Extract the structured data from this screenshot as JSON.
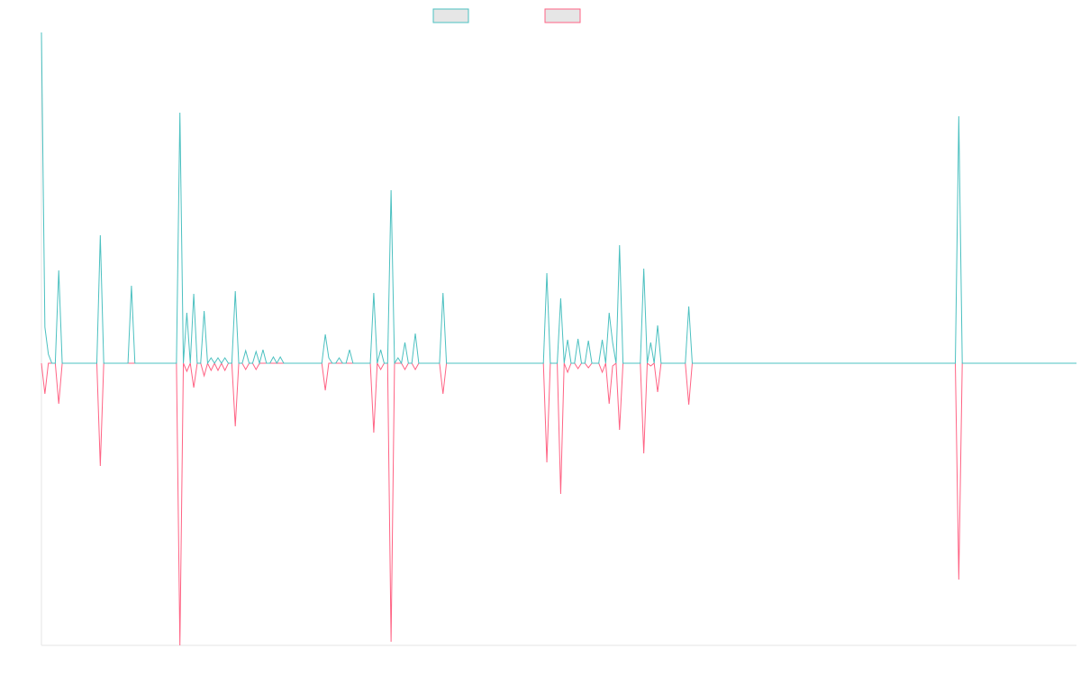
{
  "chart_data": {
    "type": "line",
    "ylim": [
      -313,
      367
    ],
    "series": [
      {
        "color": "#4bc0c0",
        "values": [
          367,
          40,
          10,
          0,
          0,
          103,
          0,
          0,
          0,
          0,
          0,
          0,
          0,
          0,
          0,
          0,
          0,
          142,
          0,
          0,
          0,
          0,
          0,
          0,
          0,
          0,
          86,
          0,
          0,
          0,
          0,
          0,
          0,
          0,
          0,
          0,
          0,
          0,
          0,
          0,
          278,
          0,
          56,
          0,
          77,
          0,
          0,
          58,
          0,
          6,
          0,
          6,
          0,
          6,
          0,
          0,
          80,
          0,
          0,
          14,
          0,
          0,
          13,
          0,
          15,
          0,
          0,
          7,
          0,
          7,
          0,
          0,
          0,
          0,
          0,
          0,
          0,
          0,
          0,
          0,
          0,
          0,
          32,
          6,
          0,
          0,
          6,
          0,
          0,
          15,
          0,
          0,
          0,
          0,
          0,
          0,
          78,
          0,
          15,
          0,
          0,
          192,
          0,
          6,
          0,
          23,
          0,
          0,
          33,
          0,
          0,
          0,
          0,
          0,
          0,
          0,
          78,
          0,
          0,
          0,
          0,
          0,
          0,
          0,
          0,
          0,
          0,
          0,
          0,
          0,
          0,
          0,
          0,
          0,
          0,
          0,
          0,
          0,
          0,
          0,
          0,
          0,
          0,
          0,
          0,
          0,
          100,
          0,
          0,
          0,
          72,
          0,
          26,
          0,
          0,
          27,
          0,
          0,
          25,
          0,
          0,
          0,
          26,
          0,
          56,
          23,
          0,
          131,
          0,
          0,
          0,
          0,
          0,
          0,
          105,
          0,
          23,
          0,
          42,
          0,
          0,
          0,
          0,
          0,
          0,
          0,
          0,
          63,
          0,
          0,
          0,
          0,
          0,
          0,
          0,
          0,
          0,
          0,
          0,
          0,
          0,
          0,
          0,
          0,
          0,
          0,
          0,
          0,
          0,
          0,
          0,
          0,
          0,
          0,
          0,
          0,
          0,
          0,
          0,
          0,
          0,
          0,
          0,
          0,
          0,
          0,
          0,
          0,
          0,
          0,
          0,
          0,
          0,
          0,
          0,
          0,
          0,
          0,
          0,
          0,
          0,
          0,
          0,
          0,
          0,
          0,
          0,
          0,
          0,
          0,
          0,
          0,
          0,
          0,
          0,
          0,
          0,
          0,
          0,
          0,
          0,
          0,
          0,
          0,
          0,
          274,
          0,
          0,
          0,
          0,
          0,
          0,
          0,
          0,
          0,
          0,
          0,
          0,
          0,
          0,
          0,
          0,
          0,
          0,
          0,
          0,
          0,
          0,
          0,
          0,
          0,
          0,
          0,
          0,
          0,
          0,
          0,
          0,
          0,
          0
        ]
      },
      {
        "color": "#ff6384",
        "values": [
          0,
          -34,
          0,
          0,
          0,
          -45,
          0,
          0,
          0,
          0,
          0,
          0,
          0,
          0,
          0,
          0,
          0,
          -114,
          0,
          0,
          0,
          0,
          0,
          0,
          0,
          0,
          0,
          0,
          0,
          0,
          0,
          0,
          0,
          0,
          0,
          0,
          0,
          0,
          0,
          0,
          -313,
          0,
          -9,
          0,
          -27,
          0,
          0,
          -14,
          0,
          -8,
          0,
          -8,
          0,
          -8,
          0,
          0,
          -70,
          0,
          0,
          -7,
          0,
          0,
          -7,
          0,
          0,
          0,
          0,
          0,
          0,
          0,
          0,
          0,
          0,
          0,
          0,
          0,
          0,
          0,
          0,
          0,
          0,
          0,
          -30,
          0,
          0,
          0,
          0,
          0,
          0,
          0,
          0,
          0,
          0,
          0,
          0,
          0,
          -77,
          0,
          -7,
          0,
          0,
          -309,
          0,
          0,
          0,
          -7,
          0,
          0,
          -7,
          0,
          0,
          0,
          0,
          0,
          0,
          0,
          -34,
          0,
          0,
          0,
          0,
          0,
          0,
          0,
          0,
          0,
          0,
          0,
          0,
          0,
          0,
          0,
          0,
          0,
          0,
          0,
          0,
          0,
          0,
          0,
          0,
          0,
          0,
          0,
          0,
          0,
          -110,
          0,
          0,
          0,
          -145,
          0,
          -10,
          0,
          0,
          -6,
          0,
          0,
          -5,
          0,
          0,
          0,
          -10,
          0,
          -45,
          -3,
          0,
          -74,
          0,
          0,
          0,
          0,
          0,
          0,
          -100,
          0,
          -3,
          0,
          -32,
          0,
          0,
          0,
          0,
          0,
          0,
          0,
          0,
          -46,
          0,
          0,
          0,
          0,
          0,
          0,
          0,
          0,
          0,
          0,
          0,
          0,
          0,
          0,
          0,
          0,
          0,
          0,
          0,
          0,
          0,
          0,
          0,
          0,
          0,
          0,
          0,
          0,
          0,
          0,
          0,
          0,
          0,
          0,
          0,
          0,
          0,
          0,
          0,
          0,
          0,
          0,
          0,
          0,
          0,
          0,
          0,
          0,
          0,
          0,
          0,
          0,
          0,
          0,
          0,
          0,
          0,
          0,
          0,
          0,
          0,
          0,
          0,
          0,
          0,
          0,
          0,
          0,
          0,
          0,
          0,
          0,
          0,
          0,
          0,
          0,
          0,
          -240,
          0,
          0,
          0,
          0,
          0,
          0,
          0,
          0,
          0,
          0,
          0,
          0,
          0,
          0,
          0,
          0,
          0,
          0,
          0,
          0,
          0,
          0,
          0,
          0,
          0,
          0,
          0,
          0,
          0,
          0,
          0,
          0,
          0,
          0
        ]
      }
    ]
  }
}
